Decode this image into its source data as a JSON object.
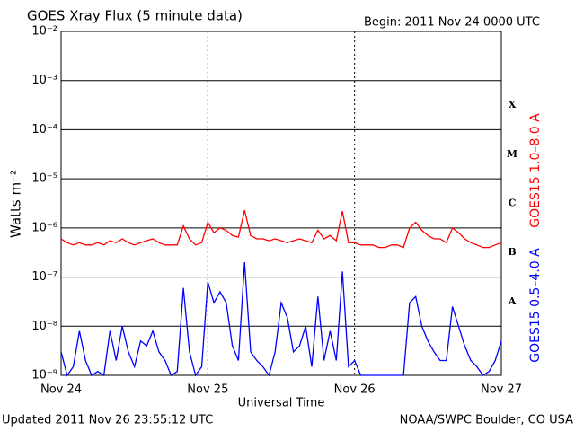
{
  "chart_data": {
    "type": "line",
    "title": "GOES Xray Flux (5 minute data)",
    "subtitle": "Begin:  2011 Nov 24 0000 UTC",
    "y_label": "Watts m⁻²",
    "x_label": "Universal Time",
    "footer_left": "Updated 2011 Nov 26 23:55:12 UTC",
    "footer_right": "NOAA/SWPC Boulder, CO USA",
    "annotations": [
      "X",
      "M",
      "C",
      "B",
      "A"
    ],
    "log_y": true,
    "grid": true,
    "xlim": [
      0,
      72
    ],
    "xticks": [
      {
        "value": 0,
        "label": "Nov 24"
      },
      {
        "value": 24,
        "label": "Nov 25"
      },
      {
        "value": 48,
        "label": "Nov 26"
      },
      {
        "value": 72,
        "label": "Nov 27"
      }
    ],
    "ylim": [
      1e-09,
      0.01
    ],
    "yticks": [
      {
        "value": 1e-09,
        "label": "10⁻⁹"
      },
      {
        "value": 1e-08,
        "label": "10⁻⁸"
      },
      {
        "value": 1e-07,
        "label": "10⁻⁷"
      },
      {
        "value": 1e-06,
        "label": "10⁻⁶"
      },
      {
        "value": 1e-05,
        "label": "10⁻⁵"
      },
      {
        "value": 0.0001,
        "label": "10⁻⁴"
      },
      {
        "value": 0.001,
        "label": "10⁻³"
      },
      {
        "value": 0.01,
        "label": "10⁻²"
      }
    ],
    "x": [
      0,
      1,
      2,
      3,
      4,
      5,
      6,
      7,
      8,
      9,
      10,
      11,
      12,
      13,
      14,
      15,
      16,
      17,
      18,
      19,
      20,
      21,
      22,
      23,
      24,
      25,
      26,
      27,
      28,
      29,
      30,
      31,
      32,
      33,
      34,
      35,
      36,
      37,
      38,
      39,
      40,
      41,
      42,
      43,
      44,
      45,
      46,
      47,
      48,
      49,
      50,
      51,
      52,
      53,
      54,
      55,
      56,
      57,
      58,
      59,
      60,
      61,
      62,
      63,
      64,
      65,
      66,
      67,
      68,
      69,
      70,
      71,
      72
    ],
    "series": [
      {
        "name": "GOES15 1.0–8.0 A",
        "color": "#ff0000",
        "values": [
          6e-07,
          5e-07,
          4.5e-07,
          5e-07,
          4.5e-07,
          4.5e-07,
          5e-07,
          4.5e-07,
          5.5e-07,
          5e-07,
          6e-07,
          5e-07,
          4.5e-07,
          5e-07,
          5.5e-07,
          6e-07,
          5e-07,
          4.5e-07,
          4.5e-07,
          4.5e-07,
          1.1e-06,
          6e-07,
          4.5e-07,
          5e-07,
          1.3e-06,
          8e-07,
          1e-06,
          9e-07,
          7e-07,
          6.5e-07,
          2.3e-06,
          7e-07,
          6e-07,
          6e-07,
          5.5e-07,
          6e-07,
          5.5e-07,
          5e-07,
          5.5e-07,
          6e-07,
          5.5e-07,
          5e-07,
          9e-07,
          6e-07,
          7e-07,
          5.5e-07,
          2.2e-06,
          5e-07,
          5e-07,
          4.5e-07,
          4.5e-07,
          4.5e-07,
          4e-07,
          4e-07,
          4.5e-07,
          4.5e-07,
          4e-07,
          1e-06,
          1.3e-06,
          9e-07,
          7e-07,
          6e-07,
          6e-07,
          5e-07,
          1e-06,
          8e-07,
          6e-07,
          5e-07,
          4.5e-07,
          4e-07,
          4e-07,
          4.5e-07,
          5e-07
        ]
      },
      {
        "name": "GOES15 0.5–4.0 A",
        "color": "#0000ff",
        "values": [
          3e-09,
          1e-09,
          1.5e-09,
          8e-09,
          2e-09,
          1e-09,
          1.2e-09,
          1e-09,
          8e-09,
          2e-09,
          1e-08,
          3e-09,
          1.5e-09,
          5e-09,
          4e-09,
          8e-09,
          3e-09,
          2e-09,
          1e-09,
          1.2e-09,
          6e-08,
          3e-09,
          1e-09,
          1.5e-09,
          8e-08,
          3e-08,
          5e-08,
          3e-08,
          4e-09,
          2e-09,
          2e-07,
          3e-09,
          2e-09,
          1.5e-09,
          1e-09,
          3e-09,
          3e-08,
          1.5e-08,
          3e-09,
          4e-09,
          1e-08,
          1.5e-09,
          4e-08,
          2e-09,
          8e-09,
          2e-09,
          1.3e-07,
          1.5e-09,
          2e-09,
          1e-09,
          1e-09,
          1e-09,
          1e-09,
          1e-09,
          1e-09,
          1e-09,
          1e-09,
          3e-08,
          4e-08,
          1e-08,
          5e-09,
          3e-09,
          2e-09,
          2e-09,
          2.5e-08,
          1e-08,
          4e-09,
          2e-09,
          1.5e-09,
          1e-09,
          1.2e-09,
          2e-09,
          5e-09
        ]
      }
    ]
  }
}
